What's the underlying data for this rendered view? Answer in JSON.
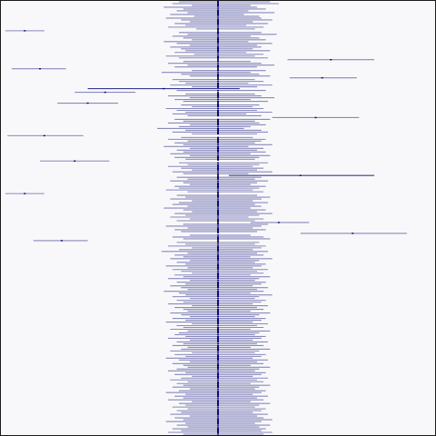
{
  "chart_data": {
    "type": "forest-plot",
    "title": "",
    "xlabel": "",
    "ylabel": "",
    "grid": false,
    "legend": "none",
    "colors": {
      "background": "#f8f8fa",
      "interval": "#1a1a80",
      "point": "#000080",
      "reference_line": "#000000",
      "border": "#1a1a1a"
    },
    "x_range": [
      -1,
      1
    ],
    "reference_value": 0,
    "n_rows": 240,
    "row_order": "top-to-bottom",
    "intervals": [
      [
        -0.18,
        0.24
      ],
      [
        -0.21,
        0.28
      ],
      [
        -0.12,
        0.15
      ],
      [
        -0.25,
        0.18
      ],
      [
        -0.16,
        0.22
      ],
      [
        -0.19,
        0.14
      ],
      [
        -0.14,
        0.26
      ],
      [
        -0.22,
        0.12
      ],
      [
        -0.11,
        0.19
      ],
      [
        -0.24,
        0.2
      ],
      [
        -0.17,
        0.25
      ],
      [
        -0.13,
        0.16
      ],
      [
        -0.2,
        0.23
      ],
      [
        -0.15,
        0.13
      ],
      [
        -0.23,
        0.21
      ],
      [
        -0.1,
        0.17
      ],
      [
        -0.98,
        -0.8
      ],
      [
        -0.18,
        0.2
      ],
      [
        -0.14,
        0.27
      ],
      [
        -0.21,
        0.15
      ],
      [
        -0.16,
        0.19
      ],
      [
        -0.12,
        0.22
      ],
      [
        -0.25,
        0.14
      ],
      [
        -0.19,
        0.25
      ],
      [
        -0.13,
        0.18
      ],
      [
        -0.22,
        0.2
      ],
      [
        -0.17,
        0.16
      ],
      [
        -0.15,
        0.24
      ],
      [
        -0.2,
        0.13
      ],
      [
        -0.11,
        0.21
      ],
      [
        -0.24,
        0.17
      ],
      [
        -0.18,
        0.23
      ],
      [
        0.32,
        0.72
      ],
      [
        -0.16,
        0.15
      ],
      [
        -0.23,
        0.2
      ],
      [
        -0.14,
        0.26
      ],
      [
        -0.2,
        0.18
      ],
      [
        -0.95,
        -0.7
      ],
      [
        -0.12,
        0.22
      ],
      [
        -0.26,
        0.15
      ],
      [
        -0.17,
        0.19
      ],
      [
        -0.13,
        0.24
      ],
      [
        0.33,
        0.64
      ],
      [
        -0.21,
        0.17
      ],
      [
        -0.18,
        0.21
      ],
      [
        -0.15,
        0.14
      ],
      [
        -0.22,
        0.25
      ],
      [
        -0.12,
        0.18
      ],
      [
        -0.6,
        0.1
      ],
      [
        -0.19,
        0.22
      ],
      [
        -0.66,
        -0.38
      ],
      [
        -0.15,
        0.17
      ],
      [
        -0.23,
        0.2
      ],
      [
        -0.13,
        0.26
      ],
      [
        -0.2,
        0.15
      ],
      [
        -0.16,
        0.23
      ],
      [
        -0.74,
        -0.46
      ],
      [
        -0.17,
        0.19
      ],
      [
        -0.12,
        0.16
      ],
      [
        -0.24,
        0.21
      ],
      [
        -0.19,
        0.18
      ],
      [
        -0.15,
        0.25
      ],
      [
        -0.21,
        0.13
      ],
      [
        -0.14,
        0.2
      ],
      [
        0.25,
        0.65
      ],
      [
        -0.2,
        0.24
      ],
      [
        -0.16,
        0.17
      ],
      [
        -0.23,
        0.19
      ],
      [
        -0.13,
        0.22
      ],
      [
        -0.18,
        0.15
      ],
      [
        -0.28,
        0.12
      ],
      [
        -0.15,
        0.2
      ],
      [
        -0.21,
        0.23
      ],
      [
        -0.12,
        0.18
      ],
      [
        -0.97,
        -0.62
      ],
      [
        -0.17,
        0.16
      ],
      [
        -0.23,
        0.22
      ],
      [
        -0.14,
        0.2
      ],
      [
        -0.2,
        0.17
      ],
      [
        -0.16,
        0.25
      ],
      [
        -0.25,
        0.14
      ],
      [
        -0.13,
        0.21
      ],
      [
        -0.19,
        0.18
      ],
      [
        -0.16,
        0.22
      ],
      [
        -0.22,
        0.15
      ],
      [
        -0.13,
        0.24
      ],
      [
        -0.2,
        0.19
      ],
      [
        -0.15,
        0.17
      ],
      [
        -0.82,
        -0.5
      ],
      [
        -0.18,
        0.23
      ],
      [
        -0.14,
        0.19
      ],
      [
        -0.23,
        0.16
      ],
      [
        -0.17,
        0.21
      ],
      [
        -0.12,
        0.18
      ],
      [
        -0.21,
        0.25
      ],
      [
        -0.16,
        0.14
      ],
      [
        0.05,
        0.72
      ],
      [
        -0.19,
        0.2
      ],
      [
        -0.14,
        0.17
      ],
      [
        -0.22,
        0.23
      ],
      [
        -0.16,
        0.18
      ],
      [
        -0.13,
        0.15
      ],
      [
        -0.2,
        0.22
      ],
      [
        -0.18,
        0.19
      ],
      [
        -0.24,
        0.16
      ],
      [
        -0.14,
        0.21
      ],
      [
        -0.98,
        -0.8
      ],
      [
        -0.19,
        0.18
      ],
      [
        -0.15,
        0.24
      ],
      [
        -0.22,
        0.2
      ],
      [
        -0.12,
        0.16
      ],
      [
        -0.18,
        0.23
      ],
      [
        -0.21,
        0.17
      ],
      [
        -0.14,
        0.2
      ],
      [
        -0.25,
        0.15
      ],
      [
        -0.16,
        0.22
      ],
      [
        -0.12,
        0.18
      ],
      [
        -0.2,
        0.25
      ],
      [
        -0.15,
        0.19
      ],
      [
        -0.22,
        0.14
      ],
      [
        -0.13,
        0.21
      ],
      [
        -0.19,
        0.17
      ],
      [
        0.15,
        0.42
      ],
      [
        -0.16,
        0.23
      ],
      [
        -0.24,
        0.2
      ],
      [
        -0.14,
        0.16
      ],
      [
        -0.2,
        0.22
      ],
      [
        -0.17,
        0.18
      ],
      [
        0.38,
        0.87
      ],
      [
        -0.13,
        0.15
      ],
      [
        -0.21,
        0.21
      ],
      [
        -0.16,
        0.24
      ],
      [
        -0.85,
        -0.6
      ],
      [
        -0.19,
        0.19
      ],
      [
        -0.15,
        0.17
      ],
      [
        -0.23,
        0.22
      ],
      [
        -0.12,
        0.2
      ],
      [
        -0.18,
        0.16
      ],
      [
        -0.26,
        0.23
      ],
      [
        -0.14,
        0.18
      ],
      [
        -0.2,
        0.21
      ],
      [
        -0.16,
        0.15
      ],
      [
        -0.22,
        0.25
      ],
      [
        -0.13,
        0.19
      ],
      [
        -0.19,
        0.17
      ],
      [
        -0.15,
        0.22
      ],
      [
        -0.24,
        0.2
      ],
      [
        -0.14,
        0.16
      ],
      [
        -0.21,
        0.23
      ],
      [
        -0.17,
        0.18
      ],
      [
        -0.12,
        0.21
      ],
      [
        -0.2,
        0.15
      ],
      [
        -0.16,
        0.24
      ],
      [
        -0.23,
        0.19
      ],
      [
        -0.13,
        0.17
      ],
      [
        -0.19,
        0.22
      ],
      [
        -0.15,
        0.2
      ],
      [
        -0.22,
        0.16
      ],
      [
        -0.17,
        0.23
      ],
      [
        -0.14,
        0.18
      ],
      [
        -0.25,
        0.21
      ],
      [
        -0.18,
        0.15
      ],
      [
        -0.15,
        0.25
      ],
      [
        -0.21,
        0.19
      ],
      [
        -0.13,
        0.17
      ],
      [
        -0.19,
        0.22
      ],
      [
        -0.16,
        0.2
      ],
      [
        -0.23,
        0.16
      ],
      [
        -0.12,
        0.23
      ],
      [
        -0.2,
        0.18
      ],
      [
        -0.16,
        0.21
      ],
      [
        -0.14,
        0.15
      ],
      [
        -0.22,
        0.24
      ],
      [
        -0.17,
        0.19
      ],
      [
        -0.13,
        0.17
      ],
      [
        -0.21,
        0.22
      ],
      [
        -0.15,
        0.2
      ],
      [
        -0.24,
        0.16
      ],
      [
        -0.12,
        0.23
      ],
      [
        -0.19,
        0.18
      ],
      [
        -0.16,
        0.21
      ],
      [
        -0.22,
        0.15
      ],
      [
        -0.14,
        0.24
      ],
      [
        -0.18,
        0.19
      ],
      [
        -0.2,
        0.17
      ],
      [
        -0.15,
        0.22
      ],
      [
        -0.23,
        0.2
      ],
      [
        -0.13,
        0.16
      ],
      [
        -0.19,
        0.23
      ],
      [
        -0.16,
        0.18
      ],
      [
        -0.21,
        0.21
      ],
      [
        -0.14,
        0.15
      ],
      [
        -0.17,
        0.24
      ],
      [
        -0.22,
        0.19
      ],
      [
        -0.12,
        0.17
      ],
      [
        -0.2,
        0.22
      ],
      [
        -0.15,
        0.2
      ],
      [
        -0.24,
        0.16
      ],
      [
        -0.18,
        0.23
      ],
      [
        -0.13,
        0.18
      ],
      [
        -0.21,
        0.21
      ],
      [
        -0.16,
        0.15
      ],
      [
        -0.14,
        0.24
      ],
      [
        -0.19,
        0.19
      ],
      [
        -0.23,
        0.17
      ],
      [
        -0.15,
        0.22
      ],
      [
        -0.2,
        0.2
      ],
      [
        -0.12,
        0.16
      ],
      [
        -0.17,
        0.23
      ],
      [
        -0.22,
        0.18
      ],
      [
        -0.14,
        0.21
      ],
      [
        -0.19,
        0.15
      ],
      [
        -0.16,
        0.24
      ],
      [
        -0.21,
        0.19
      ],
      [
        -0.13,
        0.17
      ],
      [
        -0.18,
        0.22
      ],
      [
        -0.24,
        0.2
      ],
      [
        -0.15,
        0.16
      ],
      [
        -0.2,
        0.23
      ],
      [
        -0.16,
        0.18
      ],
      [
        -0.23,
        0.21
      ],
      [
        -0.12,
        0.15
      ],
      [
        -0.18,
        0.24
      ],
      [
        -0.15,
        0.19
      ],
      [
        -0.21,
        0.17
      ],
      [
        -0.14,
        0.22
      ],
      [
        -0.19,
        0.2
      ],
      [
        -0.17,
        0.16
      ],
      [
        -0.22,
        0.23
      ],
      [
        -0.13,
        0.18
      ],
      [
        -0.2,
        0.21
      ],
      [
        -0.16,
        0.25
      ],
      [
        -0.24,
        0.2
      ],
      [
        -0.15,
        0.17
      ],
      [
        -0.19,
        0.24
      ],
      [
        -0.14,
        0.19
      ],
      [
        -0.21,
        0.22
      ],
      [
        -0.17,
        0.2
      ],
      [
        -0.23,
        0.25
      ],
      [
        -0.16,
        0.21
      ]
    ],
    "points": [
      0.0,
      0.0,
      0.0,
      0.0,
      0.0,
      0.0,
      0.0,
      0.0,
      0.0,
      0.0,
      0.0,
      0.0,
      0.0,
      0.0,
      0.0,
      0.0,
      -0.89,
      0.0,
      0.0,
      0.0,
      0.0,
      0.0,
      0.0,
      0.0,
      0.0,
      0.0,
      0.0,
      0.0,
      0.0,
      0.0,
      0.0,
      0.0,
      0.52,
      0.0,
      0.0,
      0.0,
      0.0,
      -0.82,
      0.0,
      0.0,
      0.0,
      0.0,
      0.48,
      0.0,
      0.0,
      0.0,
      0.0,
      0.0,
      -0.25,
      0.0,
      -0.52,
      0.0,
      0.0,
      0.0,
      0.0,
      0.0,
      -0.6,
      0.0,
      0.0,
      0.0,
      0.0,
      0.0,
      0.0,
      0.0,
      0.45,
      0.0,
      0.0,
      0.0,
      0.0,
      0.0,
      0.0,
      0.0,
      0.0,
      0.0,
      -0.8,
      0.0,
      0.0,
      0.0,
      0.0,
      0.0,
      0.0,
      0.0,
      0.0,
      0.0,
      0.0,
      0.0,
      0.0,
      0.0,
      -0.66,
      0.0,
      0.0,
      0.0,
      0.0,
      0.0,
      0.0,
      0.0,
      0.38,
      0.0,
      0.0,
      0.0,
      0.0,
      0.0,
      0.0,
      0.0,
      0.0,
      0.0,
      -0.89,
      0.0,
      0.0,
      0.0,
      0.0,
      0.0,
      0.0,
      0.0,
      0.0,
      0.0,
      0.0,
      0.0,
      0.0,
      0.0,
      0.0,
      0.0,
      0.28,
      0.0,
      0.0,
      0.0,
      0.0,
      0.0,
      0.62,
      0.0,
      0.0,
      0.0,
      -0.72,
      0.0,
      0.0,
      0.0,
      0.0,
      0.0,
      0.0,
      0.0,
      0.0,
      0.0,
      0.0,
      0.0,
      0.0,
      0.0,
      0.0,
      0.0,
      0.0,
      0.0,
      0.0,
      0.0,
      0.0,
      0.0,
      0.0,
      0.0,
      0.0,
      0.0,
      0.0,
      0.0,
      0.0,
      0.0,
      0.0,
      0.0,
      0.0,
      0.0,
      0.0,
      0.0,
      0.0,
      0.0,
      0.0,
      0.0,
      0.0,
      0.0,
      0.0,
      0.0,
      0.0,
      0.0,
      0.0,
      0.0,
      0.0,
      0.0,
      0.0,
      0.0,
      0.0,
      0.0,
      0.0,
      0.0,
      0.0,
      0.0,
      0.0,
      0.0,
      0.0,
      0.0,
      0.0,
      0.0,
      0.0,
      0.0,
      0.0,
      0.0,
      0.0,
      0.0,
      0.0,
      0.0,
      0.0,
      0.0,
      0.0,
      0.0,
      0.0,
      0.0,
      0.0,
      0.0,
      0.0,
      0.0,
      0.0,
      0.0,
      0.0,
      0.0,
      0.0,
      0.0,
      0.0,
      0.0,
      0.0,
      0.0,
      0.0,
      0.0,
      0.0,
      0.0,
      0.0,
      0.0,
      0.0,
      0.0,
      0.0,
      0.0,
      0.0,
      0.0,
      0.0,
      0.0,
      0.0,
      0.0
    ]
  }
}
